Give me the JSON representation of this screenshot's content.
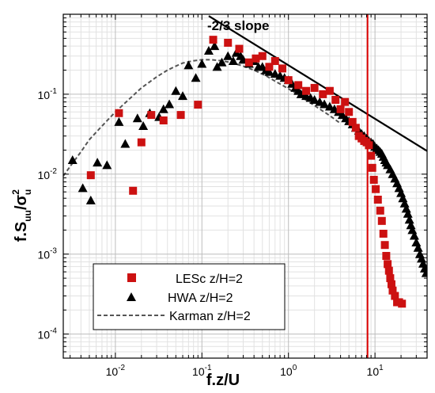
{
  "chart_data": {
    "type": "scatter",
    "xlabel": "f.z/U",
    "ylabel_parts": {
      "base": "f.S",
      "sub1": "uu",
      "slash": "/σ",
      "sup": "2",
      "sub2": "u"
    },
    "x_scale": "log",
    "y_scale": "log",
    "xlim": [
      0.0025,
      40
    ],
    "ylim": [
      5e-05,
      1.0
    ],
    "grid": true,
    "x_ticks": [
      {
        "value": 0.01,
        "base": "10",
        "exp": "-2"
      },
      {
        "value": 0.1,
        "base": "10",
        "exp": "-1"
      },
      {
        "value": 1,
        "base": "10",
        "exp": "0"
      },
      {
        "value": 10,
        "base": "10",
        "exp": "1"
      }
    ],
    "y_ticks": [
      {
        "value": 0.0001,
        "base": "10",
        "exp": "-4"
      },
      {
        "value": 0.001,
        "base": "10",
        "exp": "-3"
      },
      {
        "value": 0.01,
        "base": "10",
        "exp": "-2"
      },
      {
        "value": 0.1,
        "base": "10",
        "exp": "-1"
      }
    ],
    "annotation": "-2/3 slope",
    "slope_line": {
      "x": [
        0.12,
        40
      ],
      "y": [
        0.95,
        0.0195
      ],
      "color": "#000000"
    },
    "vertical_line": {
      "x": 8.2,
      "color": "#dd0000"
    },
    "legend_position": "bottom-center",
    "series": [
      {
        "name": "LESc z/H=2",
        "marker": "square",
        "color": "#cc1111",
        "points": [
          [
            0.0052,
            0.0097
          ],
          [
            0.011,
            0.058
          ],
          [
            0.016,
            0.0062
          ],
          [
            0.02,
            0.025
          ],
          [
            0.026,
            0.055
          ],
          [
            0.036,
            0.047
          ],
          [
            0.057,
            0.055
          ],
          [
            0.09,
            0.074
          ],
          [
            0.135,
            0.48
          ],
          [
            0.2,
            0.44
          ],
          [
            0.27,
            0.37
          ],
          [
            0.35,
            0.25
          ],
          [
            0.42,
            0.28
          ],
          [
            0.5,
            0.3
          ],
          [
            0.6,
            0.22
          ],
          [
            0.7,
            0.26
          ],
          [
            0.85,
            0.21
          ],
          [
            1.0,
            0.15
          ],
          [
            1.3,
            0.13
          ],
          [
            1.6,
            0.11
          ],
          [
            2.0,
            0.12
          ],
          [
            2.5,
            0.1
          ],
          [
            3.0,
            0.11
          ],
          [
            3.5,
            0.085
          ],
          [
            4.0,
            0.065
          ],
          [
            4.5,
            0.08
          ],
          [
            5.0,
            0.06
          ],
          [
            5.5,
            0.045
          ],
          [
            6.0,
            0.038
          ],
          [
            6.5,
            0.03
          ],
          [
            7.0,
            0.028
          ],
          [
            7.5,
            0.026
          ],
          [
            8.0,
            0.025
          ],
          [
            8.5,
            0.023
          ],
          [
            9.0,
            0.017
          ],
          [
            9.3,
            0.012
          ],
          [
            9.7,
            0.0085
          ],
          [
            10.2,
            0.0065
          ],
          [
            10.8,
            0.0048
          ],
          [
            11.5,
            0.0035
          ],
          [
            12.0,
            0.0026
          ],
          [
            12.5,
            0.0018
          ],
          [
            13.0,
            0.0013
          ],
          [
            13.5,
            0.00095
          ],
          [
            14.0,
            0.00075
          ],
          [
            14.5,
            0.00062
          ],
          [
            15.0,
            0.0005
          ],
          [
            15.5,
            0.00042
          ],
          [
            16.0,
            0.00035
          ],
          [
            17.0,
            0.0003
          ],
          [
            18.0,
            0.00025
          ],
          [
            19.0,
            0.00025
          ],
          [
            20.5,
            0.00024
          ]
        ]
      },
      {
        "name": "HWA z/H=2",
        "marker": "triangle",
        "color": "#000000",
        "points": [
          [
            0.0032,
            0.015
          ],
          [
            0.0042,
            0.0067
          ],
          [
            0.0052,
            0.0047
          ],
          [
            0.0062,
            0.014
          ],
          [
            0.008,
            0.013
          ],
          [
            0.011,
            0.045
          ],
          [
            0.013,
            0.024
          ],
          [
            0.018,
            0.05
          ],
          [
            0.021,
            0.04
          ],
          [
            0.025,
            0.058
          ],
          [
            0.032,
            0.052
          ],
          [
            0.036,
            0.065
          ],
          [
            0.042,
            0.075
          ],
          [
            0.05,
            0.11
          ],
          [
            0.06,
            0.095
          ],
          [
            0.07,
            0.23
          ],
          [
            0.085,
            0.16
          ],
          [
            0.1,
            0.24
          ],
          [
            0.12,
            0.35
          ],
          [
            0.14,
            0.4
          ],
          [
            0.15,
            0.22
          ],
          [
            0.17,
            0.25
          ],
          [
            0.2,
            0.3
          ],
          [
            0.23,
            0.26
          ],
          [
            0.25,
            0.33
          ],
          [
            0.28,
            0.3
          ],
          [
            0.3,
            0.27
          ],
          [
            0.35,
            0.24
          ],
          [
            0.4,
            0.26
          ],
          [
            0.45,
            0.22
          ],
          [
            0.5,
            0.22
          ],
          [
            0.55,
            0.2
          ],
          [
            0.6,
            0.19
          ],
          [
            0.7,
            0.18
          ],
          [
            0.8,
            0.17
          ],
          [
            0.9,
            0.16
          ],
          [
            1.0,
            0.15
          ],
          [
            1.1,
            0.135
          ],
          [
            1.2,
            0.12
          ],
          [
            1.3,
            0.11
          ],
          [
            1.4,
            0.1
          ],
          [
            1.6,
            0.095
          ],
          [
            1.8,
            0.09
          ],
          [
            2.0,
            0.085
          ],
          [
            2.3,
            0.08
          ],
          [
            2.6,
            0.075
          ],
          [
            3.0,
            0.07
          ],
          [
            3.4,
            0.065
          ],
          [
            3.8,
            0.06
          ],
          [
            4.2,
            0.055
          ],
          [
            4.6,
            0.05
          ],
          [
            5.0,
            0.046
          ],
          [
            5.5,
            0.042
          ],
          [
            6.0,
            0.038
          ],
          [
            6.5,
            0.035
          ],
          [
            7.0,
            0.032
          ],
          [
            7.5,
            0.03
          ],
          [
            8.0,
            0.028
          ],
          [
            8.5,
            0.026
          ],
          [
            9.0,
            0.025
          ],
          [
            9.5,
            0.024
          ],
          [
            10.0,
            0.022
          ],
          [
            10.5,
            0.021
          ],
          [
            11.0,
            0.02
          ],
          [
            11.5,
            0.019
          ],
          [
            12.0,
            0.018
          ],
          [
            12.5,
            0.0165
          ],
          [
            13.0,
            0.015
          ],
          [
            13.5,
            0.014
          ],
          [
            14.0,
            0.013
          ],
          [
            15.0,
            0.0115
          ],
          [
            16.0,
            0.01
          ],
          [
            17.0,
            0.0088
          ],
          [
            18.0,
            0.0077
          ],
          [
            19.0,
            0.0067
          ],
          [
            20.0,
            0.0058
          ],
          [
            21.0,
            0.005
          ],
          [
            22.0,
            0.0043
          ],
          [
            23.0,
            0.0037
          ],
          [
            24.0,
            0.0032
          ],
          [
            25.0,
            0.0027
          ],
          [
            26.0,
            0.0023
          ],
          [
            27.0,
            0.002
          ],
          [
            28.5,
            0.0017
          ],
          [
            30.0,
            0.0014
          ],
          [
            31.5,
            0.0012
          ],
          [
            33.0,
            0.001
          ],
          [
            34.5,
            0.00088
          ],
          [
            36.0,
            0.00076
          ],
          [
            37.5,
            0.00066
          ],
          [
            39.0,
            0.00058
          ]
        ]
      },
      {
        "name": "Karman z/H=2",
        "marker": "dashed-line",
        "color": "#555555",
        "points": [
          [
            0.0025,
            0.0095
          ],
          [
            0.003,
            0.0125
          ],
          [
            0.004,
            0.019
          ],
          [
            0.005,
            0.027
          ],
          [
            0.007,
            0.04
          ],
          [
            0.01,
            0.06
          ],
          [
            0.015,
            0.09
          ],
          [
            0.02,
            0.12
          ],
          [
            0.03,
            0.165
          ],
          [
            0.04,
            0.2
          ],
          [
            0.05,
            0.225
          ],
          [
            0.06,
            0.245
          ],
          [
            0.08,
            0.262
          ],
          [
            0.1,
            0.27
          ],
          [
            0.13,
            0.27
          ],
          [
            0.17,
            0.262
          ],
          [
            0.22,
            0.248
          ],
          [
            0.3,
            0.225
          ],
          [
            0.4,
            0.2
          ],
          [
            0.55,
            0.17
          ],
          [
            0.75,
            0.14
          ],
          [
            1.0,
            0.117
          ],
          [
            1.4,
            0.093
          ],
          [
            2.0,
            0.072
          ],
          [
            3.0,
            0.054
          ],
          [
            4.0,
            0.043
          ]
        ]
      }
    ]
  }
}
